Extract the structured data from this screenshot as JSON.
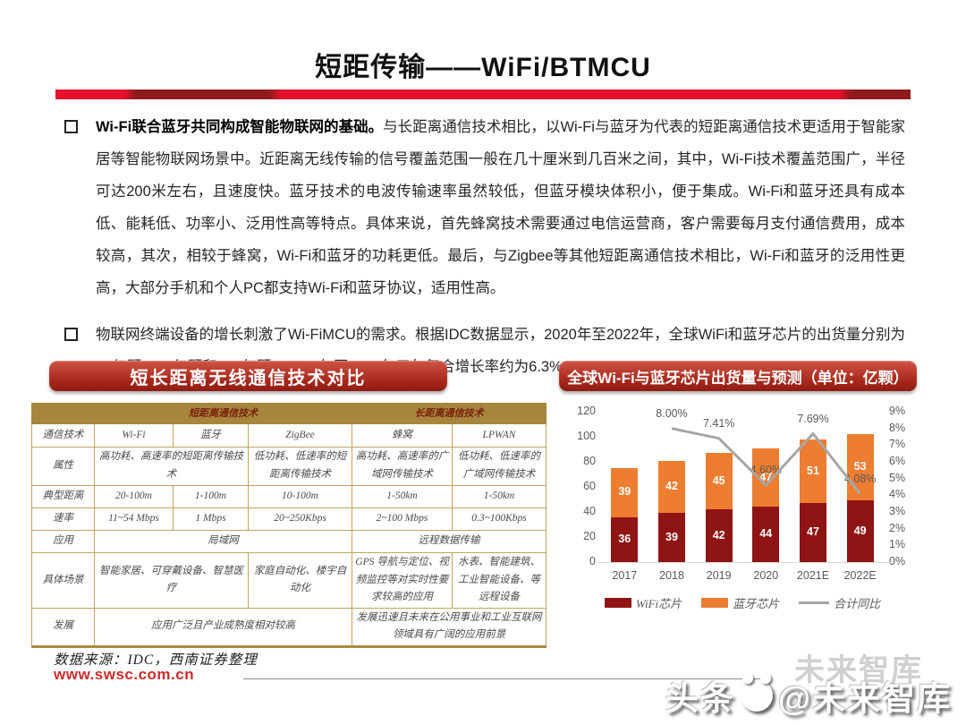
{
  "page": {
    "title": "短距传输——WiFi/BTMCU"
  },
  "bullets": [
    {
      "lead": "Wi-Fi联合蓝牙共同构成智能物联网的基础。",
      "text": "与长距离通信技术相比，以Wi-Fi与蓝牙为代表的短距离通信技术更适用于智能家居等智能物联网场景中。近距离无线传输的信号覆盖范围一般在几十厘米到几百米之间，其中，Wi-Fi技术覆盖范围广，半径可达200米左右，且速度快。蓝牙技术的电波传输速率虽然较低，但蓝牙模块体积小，便于集成。Wi-Fi和蓝牙还具有成本低、能耗低、功率小、泛用性高等特点。具体来说，首先蜂窝技术需要通过电信运营商，客户需要每月支付通信费用，成本较高，其次，相较于蜂窝，Wi-Fi和蓝牙的功耗更低。最后，与Zigbee等其他短距离通信技术相比，Wi-Fi和蓝牙的泛用性更高，大部分手机和个人PC都支持Wi-Fi和蓝牙协议，适用性高。"
    },
    {
      "lead": "",
      "text": "物联网终端设备的增长刺激了Wi-FiMCU的需求。根据IDC数据显示，2020年至2022年，全球WiFi和蓝牙芯片的出货量分别为91亿颗，98亿颗和102亿颗，2017年至2022年五年复合增长率约为6.3%。"
    }
  ],
  "left_panel": {
    "banner": "短长距离无线通信技术对比",
    "table": {
      "group_headers": [
        "短距离通信技术",
        "长距离通信技术"
      ],
      "row_labels": [
        "通信技术",
        "属性",
        "典型距离",
        "速率",
        "应用",
        "具体场景",
        "发展"
      ],
      "rows": {
        "tech": [
          "Wi-Fi",
          "蓝牙",
          "ZigBee",
          "蜂窝",
          "LPWAN"
        ],
        "attr": [
          "高功耗、高速率的短距离传输技术",
          "低功耗、低速率的短距离传输技术",
          "高功耗、高速率的广域网传输技术",
          "低功耗、低速率的广域网传输技术"
        ],
        "distance": [
          "20-100m",
          "1-100m",
          "10-100m",
          "1-50km",
          "1-50km"
        ],
        "rate": [
          "11~54 Mbps",
          "1 Mbps",
          "20~250Kbps",
          "2~100 Mbps",
          "0.3~100Kbps"
        ],
        "application": [
          "局域网",
          "远程数据传输"
        ],
        "scenes": [
          "智能家居、可穿戴设备、智慧医疗",
          "家庭自动化、楼宇自动化",
          "GPS 导航与定位、视频监控等对实时性要求较高的应用",
          "水表、智能建筑、工业智能设备、等远程设备"
        ],
        "development": [
          "应用广泛且产业成熟度相对较高",
          "发展迅速且未来在公用事业和工业互联网领域具有广阔的应用前景"
        ]
      }
    }
  },
  "right_panel": {
    "banner": "全球Wi-Fi与蓝牙芯片出货量与预测（单位：亿颗）"
  },
  "chart_data": {
    "type": "bar",
    "subtype": "stacked-bar-with-line",
    "title": "全球Wi-Fi与蓝牙芯片出货量与预测（单位：亿颗）",
    "categories": [
      "2017",
      "2018",
      "2019",
      "2020",
      "2021E",
      "2022E"
    ],
    "series": [
      {
        "name": "WiFi芯片",
        "type": "bar",
        "color": "#8f1414",
        "values": [
          36,
          39,
          42,
          44,
          47,
          49
        ]
      },
      {
        "name": "蓝牙芯片",
        "type": "bar",
        "color": "#ed7d31",
        "values": [
          39,
          42,
          45,
          47,
          51,
          53
        ]
      },
      {
        "name": "合计同比",
        "type": "line",
        "color": "#a6a6a6",
        "axis": "right",
        "values": [
          null,
          8.0,
          7.41,
          4.6,
          7.69,
          4.08
        ],
        "labels": [
          "",
          "8.00%",
          "7.41%",
          "4.60%",
          "7.69%",
          "4.08%"
        ]
      }
    ],
    "left_axis": {
      "min": 0,
      "max": 120,
      "step": 20
    },
    "right_axis": {
      "min": 0,
      "max": 9,
      "step": 1,
      "suffix": "%"
    },
    "grid": false,
    "legend_position": "bottom"
  },
  "footer": {
    "source": "数据来源：IDC，西南证券整理",
    "site": "www.swsc.com.cn"
  },
  "watermark": {
    "front_left": "头条",
    "front_right": "@未来智库",
    "back": "未来智库"
  }
}
